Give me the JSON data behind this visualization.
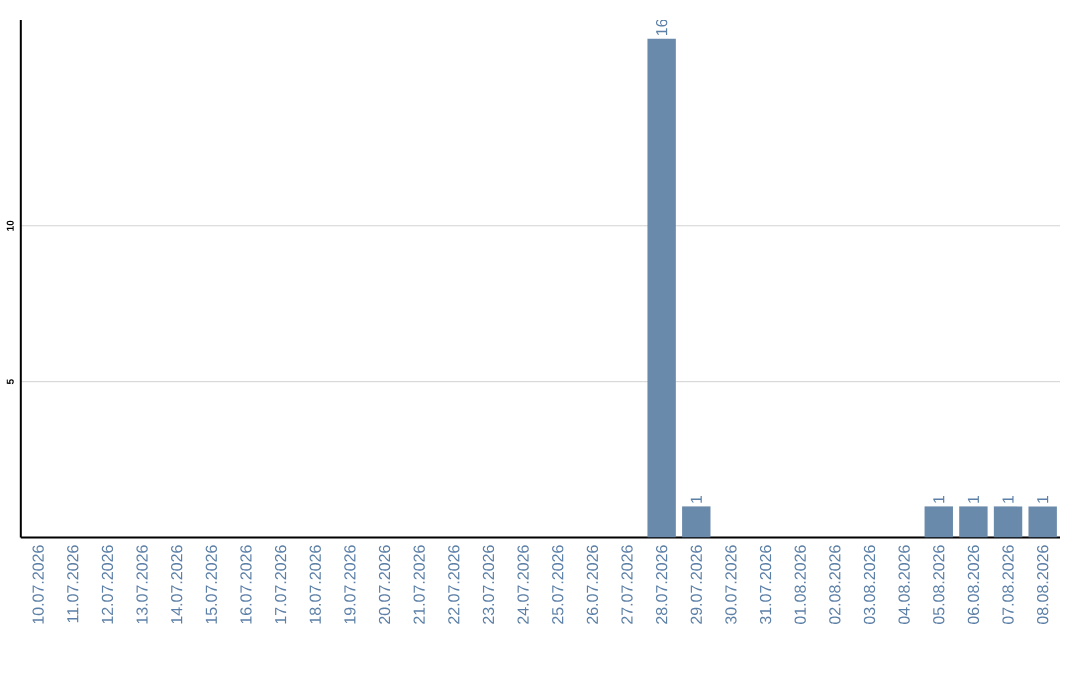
{
  "chart_data": {
    "type": "bar",
    "categories": [
      "10.07.2026",
      "11.07.2026",
      "12.07.2026",
      "13.07.2026",
      "14.07.2026",
      "15.07.2026",
      "16.07.2026",
      "17.07.2026",
      "18.07.2026",
      "19.07.2026",
      "20.07.2026",
      "21.07.2026",
      "22.07.2026",
      "23.07.2026",
      "24.07.2026",
      "25.07.2026",
      "26.07.2026",
      "27.07.2026",
      "28.07.2026",
      "29.07.2026",
      "30.07.2026",
      "31.07.2026",
      "01.08.2026",
      "02.08.2026",
      "03.08.2026",
      "04.08.2026",
      "05.08.2026",
      "06.08.2026",
      "07.08.2026",
      "08.08.2026"
    ],
    "values": [
      0,
      0,
      0,
      0,
      0,
      0,
      0,
      0,
      0,
      0,
      0,
      0,
      0,
      0,
      0,
      0,
      0,
      0,
      16,
      1,
      0,
      0,
      0,
      0,
      0,
      0,
      1,
      1,
      1,
      1
    ],
    "value_labels": [
      null,
      null,
      null,
      null,
      null,
      null,
      null,
      null,
      null,
      null,
      null,
      null,
      null,
      null,
      null,
      null,
      null,
      null,
      "16",
      "1",
      null,
      null,
      null,
      null,
      null,
      null,
      "1",
      "1",
      "1",
      "1"
    ],
    "color": "#6a8aab",
    "ylim": [
      0,
      16.6
    ],
    "yticks": [
      5,
      10
    ],
    "grid": "y"
  }
}
